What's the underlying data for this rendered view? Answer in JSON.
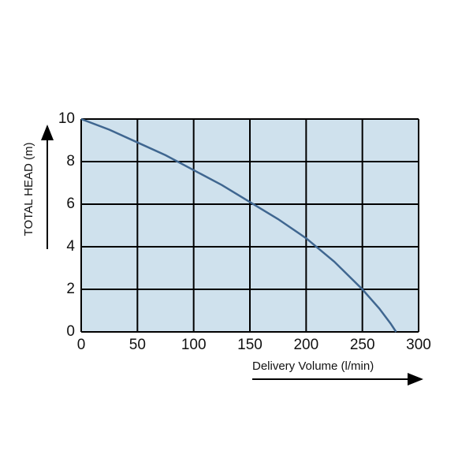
{
  "chart_data": {
    "type": "line",
    "xlabel": "Delivery Volume (l/min)",
    "ylabel": "TOTAL HEAD (m)",
    "x": [
      0,
      25,
      50,
      75,
      100,
      125,
      150,
      175,
      200,
      225,
      250,
      265,
      275,
      280
    ],
    "series": [
      {
        "color": "#3f6690",
        "values": [
          10,
          9.5,
          8.9,
          8.3,
          7.6,
          6.9,
          6.1,
          5.3,
          4.4,
          3.3,
          2.0,
          1.1,
          0.4,
          0
        ]
      }
    ],
    "xlim": [
      0,
      300
    ],
    "xticks": [
      0,
      50,
      100,
      150,
      200,
      250,
      300
    ],
    "ylim": [
      0,
      10
    ],
    "yticks": [
      0,
      2,
      4,
      6,
      8,
      10
    ],
    "grid": true,
    "background": "#cfe1ed"
  }
}
